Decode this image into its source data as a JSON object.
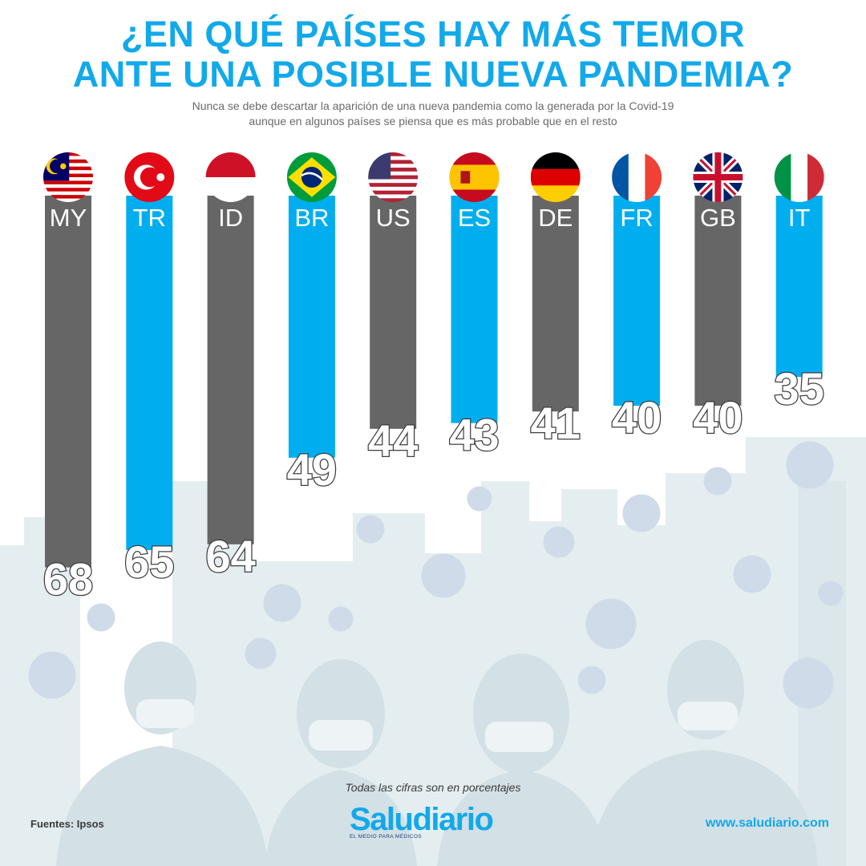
{
  "title": {
    "line1": "¿EN QUÉ PAÍSES HAY MÁS TEMOR",
    "line2": "ANTE UNA POSIBLE NUEVA PANDEMIA?"
  },
  "subtitle": {
    "line1": "Nunca se debe descartar la aparición de una nueva pandemia como la generada por la Covid-19",
    "line2": "aunque en algunos países se piensa que es más probable que en el resto"
  },
  "colors": {
    "accent_blue": "#00aeef",
    "bar_gray": "#666666",
    "title_blue": "#12a9ea",
    "background_art": "#dde8ea"
  },
  "chart_data": {
    "type": "bar",
    "categories": [
      "MY",
      "TR",
      "ID",
      "BR",
      "US",
      "ES",
      "DE",
      "FR",
      "GB",
      "IT"
    ],
    "values": [
      68,
      65,
      64,
      49,
      44,
      43,
      41,
      40,
      40,
      35
    ],
    "bar_colors": [
      "gray",
      "blue",
      "gray",
      "blue",
      "gray",
      "blue",
      "gray",
      "blue",
      "gray",
      "blue"
    ],
    "flag_icons": [
      "malaysia-flag",
      "turkey-flag",
      "indonesia-flag",
      "brazil-flag",
      "usa-flag",
      "spain-flag",
      "germany-flag",
      "france-flag",
      "uk-flag",
      "italy-flag"
    ],
    "unit_note": "Todas las cifras son en porcentajes",
    "grid": false,
    "legend": "none"
  },
  "footer": {
    "note": "Todas las cifras son en porcentajes",
    "sources": "Fuentes: Ipsos",
    "logo_name": "Saludiario",
    "logo_tagline": "EL MEDIO PARA MÉDICOS",
    "website": "www.saludiario.com"
  }
}
